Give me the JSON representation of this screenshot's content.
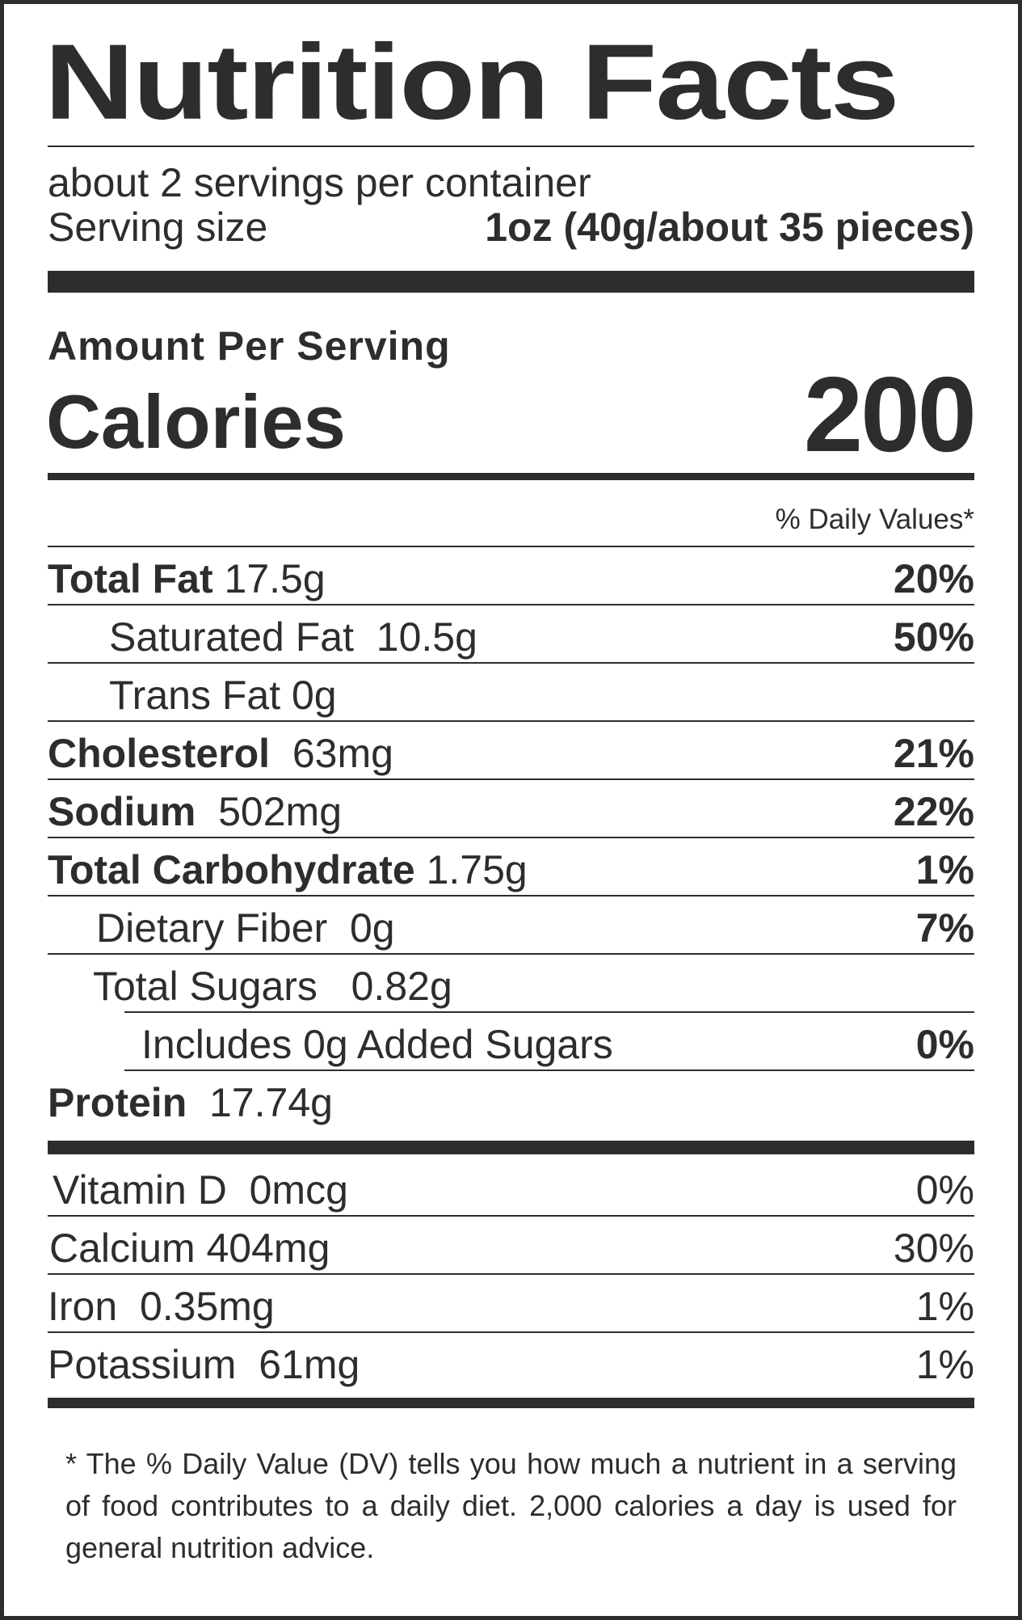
{
  "title": "Nutrition Facts",
  "servings_per_container": "about 2 servings per container",
  "serving_size_label": "Serving size",
  "serving_size_value": "1oz (40g/about 35 pieces)",
  "amount_per_serving": "Amount Per Serving",
  "calories_label": "Calories",
  "calories_value": "200",
  "daily_values_header": "% Daily Values*",
  "nutrients": [
    {
      "name": "Total Fat",
      "amount": "17.5g",
      "dv": "20%"
    },
    {
      "name": "Saturated Fat",
      "amount": "10.5g",
      "dv": "50%"
    },
    {
      "name": "Trans Fat",
      "amount": "0g",
      "dv": ""
    },
    {
      "name": "Cholesterol",
      "amount": "63mg",
      "dv": "21%"
    },
    {
      "name": "Sodium",
      "amount": "502mg",
      "dv": "22%"
    },
    {
      "name": "Total Carbohydrate",
      "amount": "1.75g",
      "dv": "1%"
    },
    {
      "name": "Dietary Fiber",
      "amount": "0g",
      "dv": "7%"
    },
    {
      "name": "Total Sugars",
      "amount": "0.82g",
      "dv": ""
    },
    {
      "name": "Includes 0g Added Sugars",
      "amount": "",
      "dv": "0%"
    },
    {
      "name": "Protein",
      "amount": "17.74g",
      "dv": ""
    }
  ],
  "vitamins": [
    {
      "name": "Vitamin D",
      "amount": "0mcg",
      "dv": "0%"
    },
    {
      "name": "Calcium",
      "amount": "404mg",
      "dv": "30%"
    },
    {
      "name": "Iron",
      "amount": "0.35mg",
      "dv": "1%"
    },
    {
      "name": "Potassium",
      "amount": "61mg",
      "dv": "1%"
    }
  ],
  "footnote": "* The % Daily Value (DV) tells you how much a nutrient in a serving of food contributes to a daily diet. 2,000 calories a day is used for general nutrition advice."
}
